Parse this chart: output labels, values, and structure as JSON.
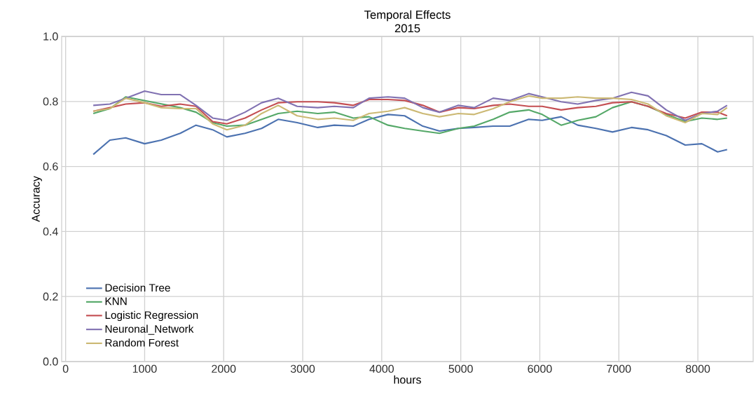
{
  "chart_data": {
    "type": "line",
    "title": "Temporal Effects",
    "subtitle": "2015",
    "xlabel": "hours",
    "ylabel": "Accuracy",
    "x": [
      350,
      560,
      760,
      1000,
      1210,
      1450,
      1650,
      1860,
      2040,
      2270,
      2480,
      2690,
      2930,
      3190,
      3400,
      3640,
      3840,
      4080,
      4290,
      4520,
      4730,
      4970,
      5170,
      5410,
      5620,
      5860,
      6030,
      6270,
      6480,
      6710,
      6920,
      7160,
      7370,
      7600,
      7840,
      8050,
      8250,
      8370
    ],
    "series": [
      {
        "name": "Decision Tree",
        "color": "#4c72b0",
        "values": [
          0.637,
          0.681,
          0.688,
          0.67,
          0.681,
          0.702,
          0.727,
          0.713,
          0.691,
          0.702,
          0.717,
          0.745,
          0.735,
          0.72,
          0.727,
          0.724,
          0.745,
          0.76,
          0.756,
          0.724,
          0.709,
          0.717,
          0.72,
          0.724,
          0.724,
          0.745,
          0.742,
          0.753,
          0.727,
          0.717,
          0.706,
          0.72,
          0.713,
          0.695,
          0.666,
          0.67,
          0.645,
          0.652
        ]
      },
      {
        "name": "KNN",
        "color": "#55a868",
        "values": [
          0.763,
          0.778,
          0.814,
          null,
          null,
          0.781,
          0.767,
          0.735,
          0.724,
          0.727,
          0.745,
          0.763,
          0.77,
          0.763,
          0.767,
          0.749,
          0.753,
          0.727,
          0.717,
          0.709,
          0.702,
          0.717,
          0.724,
          0.745,
          0.767,
          0.774,
          0.76,
          0.727,
          0.742,
          0.753,
          0.781,
          0.799,
          0.785,
          0.76,
          0.738,
          0.749,
          0.745,
          0.749
        ]
      },
      {
        "name": "Logistic Regression",
        "color": "#c44e52",
        "values": [
          0.77,
          0.781,
          0.792,
          0.796,
          0.785,
          0.792,
          0.785,
          0.738,
          0.731,
          0.749,
          0.774,
          0.796,
          0.799,
          0.799,
          0.796,
          0.788,
          0.806,
          0.806,
          0.803,
          0.788,
          0.767,
          0.781,
          0.778,
          0.788,
          0.792,
          0.785,
          0.785,
          0.774,
          0.781,
          0.785,
          0.796,
          0.799,
          0.785,
          0.763,
          0.749,
          0.767,
          0.767,
          0.756
        ]
      },
      {
        "name": "Neuronal_Network",
        "color": "#8172b2",
        "values": [
          0.788,
          0.792,
          0.81,
          0.832,
          0.821,
          0.821,
          0.788,
          0.749,
          0.742,
          0.767,
          0.796,
          0.81,
          0.785,
          0.781,
          0.785,
          0.781,
          0.81,
          0.814,
          0.81,
          0.781,
          0.767,
          0.788,
          0.781,
          0.81,
          0.803,
          0.824,
          0.814,
          0.799,
          0.792,
          0.803,
          0.81,
          0.828,
          0.817,
          0.774,
          0.742,
          0.763,
          0.77,
          0.788
        ]
      },
      {
        "name": "Random Forest",
        "color": "#ccb974",
        "values": [
          0.77,
          0.778,
          0.81,
          0.796,
          0.781,
          0.778,
          0.778,
          0.731,
          0.713,
          0.727,
          0.763,
          0.788,
          0.756,
          0.745,
          0.749,
          0.742,
          0.763,
          0.77,
          0.781,
          0.763,
          0.753,
          0.763,
          0.76,
          0.778,
          0.799,
          0.817,
          0.81,
          0.81,
          0.814,
          0.81,
          0.81,
          0.806,
          0.792,
          0.756,
          0.735,
          0.763,
          0.76,
          0.781
        ]
      }
    ],
    "xlim": [
      -50,
      8700
    ],
    "ylim": [
      0.0,
      1.0
    ],
    "xticks": [
      0,
      1000,
      2000,
      3000,
      4000,
      5000,
      6000,
      7000,
      8000
    ],
    "yticks": [
      {
        "value": 0.0,
        "label": "0.0"
      },
      {
        "value": 0.2,
        "label": "0.2"
      },
      {
        "value": 0.4,
        "label": "0.4"
      },
      {
        "value": 0.6,
        "label": "0.6"
      },
      {
        "value": 0.8,
        "label": "0.8"
      },
      {
        "value": 1.0,
        "label": "1.0"
      }
    ],
    "grid": true,
    "legend": "bottom left",
    "marker": "none",
    "line_style": "solid"
  }
}
